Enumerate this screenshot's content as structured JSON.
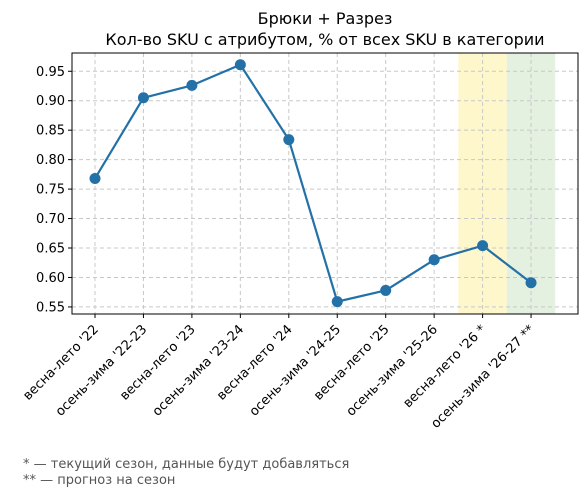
{
  "chart_data": {
    "type": "line",
    "title": "Брюки + Разрез",
    "subtitle": "Кол-во SKU с атрибутом, % от всех SKU в категории",
    "xlabel": "",
    "ylabel": "",
    "categories": [
      "весна-лето '22",
      "осень-зима '22-23",
      "весна-лето '23",
      "осень-зима '23-24",
      "весна-лето '24",
      "осень-зима '24-25",
      "весна-лето '25",
      "осень-зима '25-26",
      "весна-лето '26 *",
      "осень-зима '26-27 **"
    ],
    "series": [
      {
        "values": [
          0.768,
          0.905,
          0.926,
          0.961,
          0.834,
          0.559,
          0.578,
          0.63,
          0.654,
          0.591
        ]
      }
    ],
    "ylim": [
      0.538,
      0.981
    ],
    "yticks": [
      "0.55",
      "0.60",
      "0.65",
      "0.70",
      "0.75",
      "0.80",
      "0.85",
      "0.90",
      "0.95"
    ],
    "grid": true,
    "highlight_bands": [
      {
        "category": "весна-лето '26 *",
        "color": "#fff7cc"
      },
      {
        "category": "осень-зима '26-27 **",
        "color": "#e4f1e0"
      }
    ],
    "line_color": "#2471a8"
  },
  "footnotes": [
    "* — текущий сезон, данные будут добавляться",
    "** — прогноз на сезон"
  ]
}
